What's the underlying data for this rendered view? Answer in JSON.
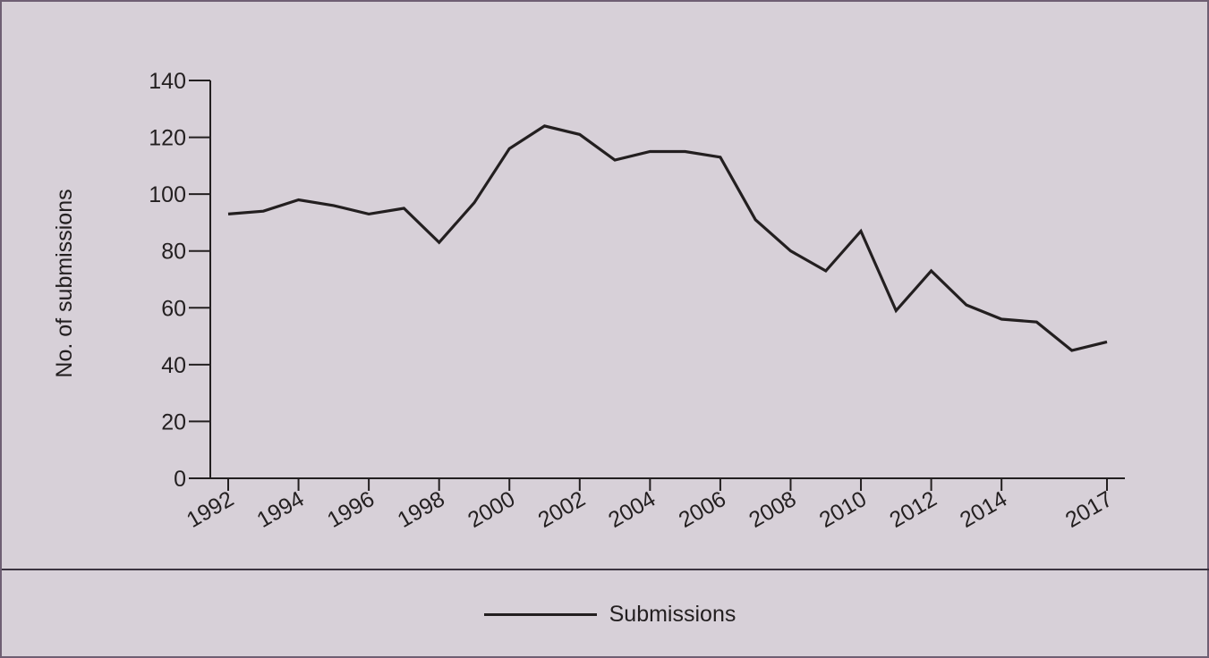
{
  "chart_data": {
    "type": "line",
    "xlabel": "",
    "ylabel": "No. of submissions",
    "ylim": [
      0,
      140
    ],
    "xlim": [
      1992,
      2017
    ],
    "yticks": [
      0,
      20,
      40,
      60,
      80,
      100,
      120,
      140
    ],
    "xticks": [
      "1992",
      "1994",
      "1996",
      "1998",
      "2000",
      "2002",
      "2004",
      "2006",
      "2008",
      "2010",
      "2012",
      "2014",
      "2017"
    ],
    "grid": false,
    "legend_position": "bottom",
    "series": [
      {
        "name": "Submissions",
        "color": "#231f20",
        "x": [
          1992,
          1993,
          1994,
          1995,
          1996,
          1997,
          1998,
          1999,
          2000,
          2001,
          2002,
          2003,
          2004,
          2005,
          2006,
          2007,
          2008,
          2009,
          2010,
          2011,
          2012,
          2013,
          2014,
          2015,
          2016,
          2017
        ],
        "y": [
          93,
          94,
          98,
          96,
          93,
          95,
          83,
          97,
          116,
          124,
          121,
          112,
          115,
          115,
          113,
          91,
          80,
          73,
          87,
          59,
          73,
          61,
          56,
          55,
          45,
          48
        ]
      }
    ]
  }
}
